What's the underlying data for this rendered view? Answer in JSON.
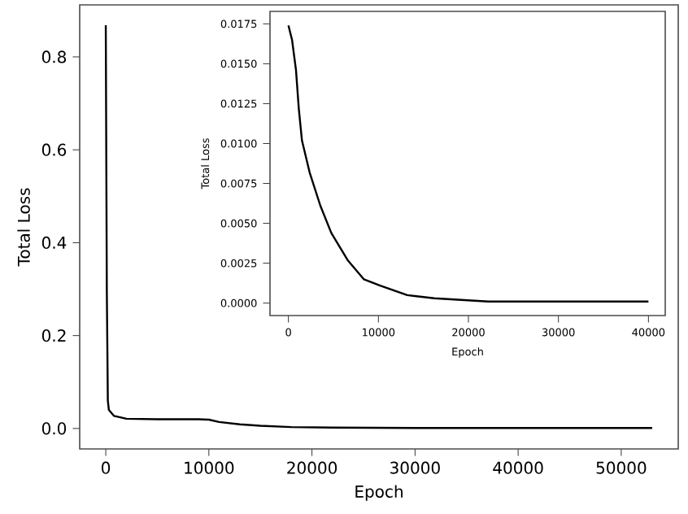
{
  "chart_data": [
    {
      "type": "line",
      "xlabel": "Epoch",
      "ylabel": "Total Loss",
      "xlim": [
        -2530,
        55530
      ],
      "ylim": [
        -0.044,
        0.912
      ],
      "xticks": [
        0,
        10000,
        20000,
        30000,
        40000,
        50000
      ],
      "yticks": [
        {
          "value": 0,
          "label": "0.0"
        },
        {
          "value": 0.2,
          "label": "0.2"
        },
        {
          "value": 0.4,
          "label": "0.4"
        },
        {
          "value": 0.6,
          "label": "0.6"
        },
        {
          "value": 0.8,
          "label": "0.8"
        }
      ],
      "line_style": "solid",
      "series": [
        {
          "color": "#000000",
          "x": [
            0,
            100,
            200,
            300,
            800,
            2000,
            5000,
            9000,
            10000,
            11000,
            13000,
            15000,
            18000,
            22000,
            30000,
            53000
          ],
          "values": [
            0.868,
            0.3,
            0.06,
            0.04,
            0.027,
            0.021,
            0.02,
            0.02,
            0.019,
            0.014,
            0.009,
            0.006,
            0.003,
            0.002,
            0.001,
            0.001
          ]
        }
      ]
    },
    {
      "type": "line",
      "xlabel": "Epoch",
      "ylabel": "Total Loss",
      "xlim": [
        -2048,
        41867
      ],
      "ylim": [
        -0.00078,
        0.01828
      ],
      "xticks": [
        0,
        10000,
        20000,
        30000,
        40000
      ],
      "yticks": [
        {
          "value": 0,
          "label": "0.0000"
        },
        {
          "value": 0.0025,
          "label": "0.0025"
        },
        {
          "value": 0.005,
          "label": "0.0050"
        },
        {
          "value": 0.0075,
          "label": "0.0075"
        },
        {
          "value": 0.01,
          "label": "0.0100"
        },
        {
          "value": 0.0125,
          "label": "0.0125"
        },
        {
          "value": 0.015,
          "label": "0.0150"
        },
        {
          "value": 0.0175,
          "label": "0.0175"
        }
      ],
      "line_style": "solid",
      "series": [
        {
          "color": "#000000",
          "x": [
            0,
            400,
            840,
            1150,
            1500,
            2350,
            3550,
            4760,
            6570,
            8370,
            10180,
            13200,
            16200,
            22200,
            28250,
            40000
          ],
          "values": [
            0.0174,
            0.0165,
            0.0146,
            0.0122,
            0.0102,
            0.0082,
            0.0061,
            0.0044,
            0.0027,
            0.0015,
            0.0011,
            0.0005,
            0.0003,
            0.0001,
            0.0001,
            0.0001
          ]
        }
      ]
    }
  ]
}
